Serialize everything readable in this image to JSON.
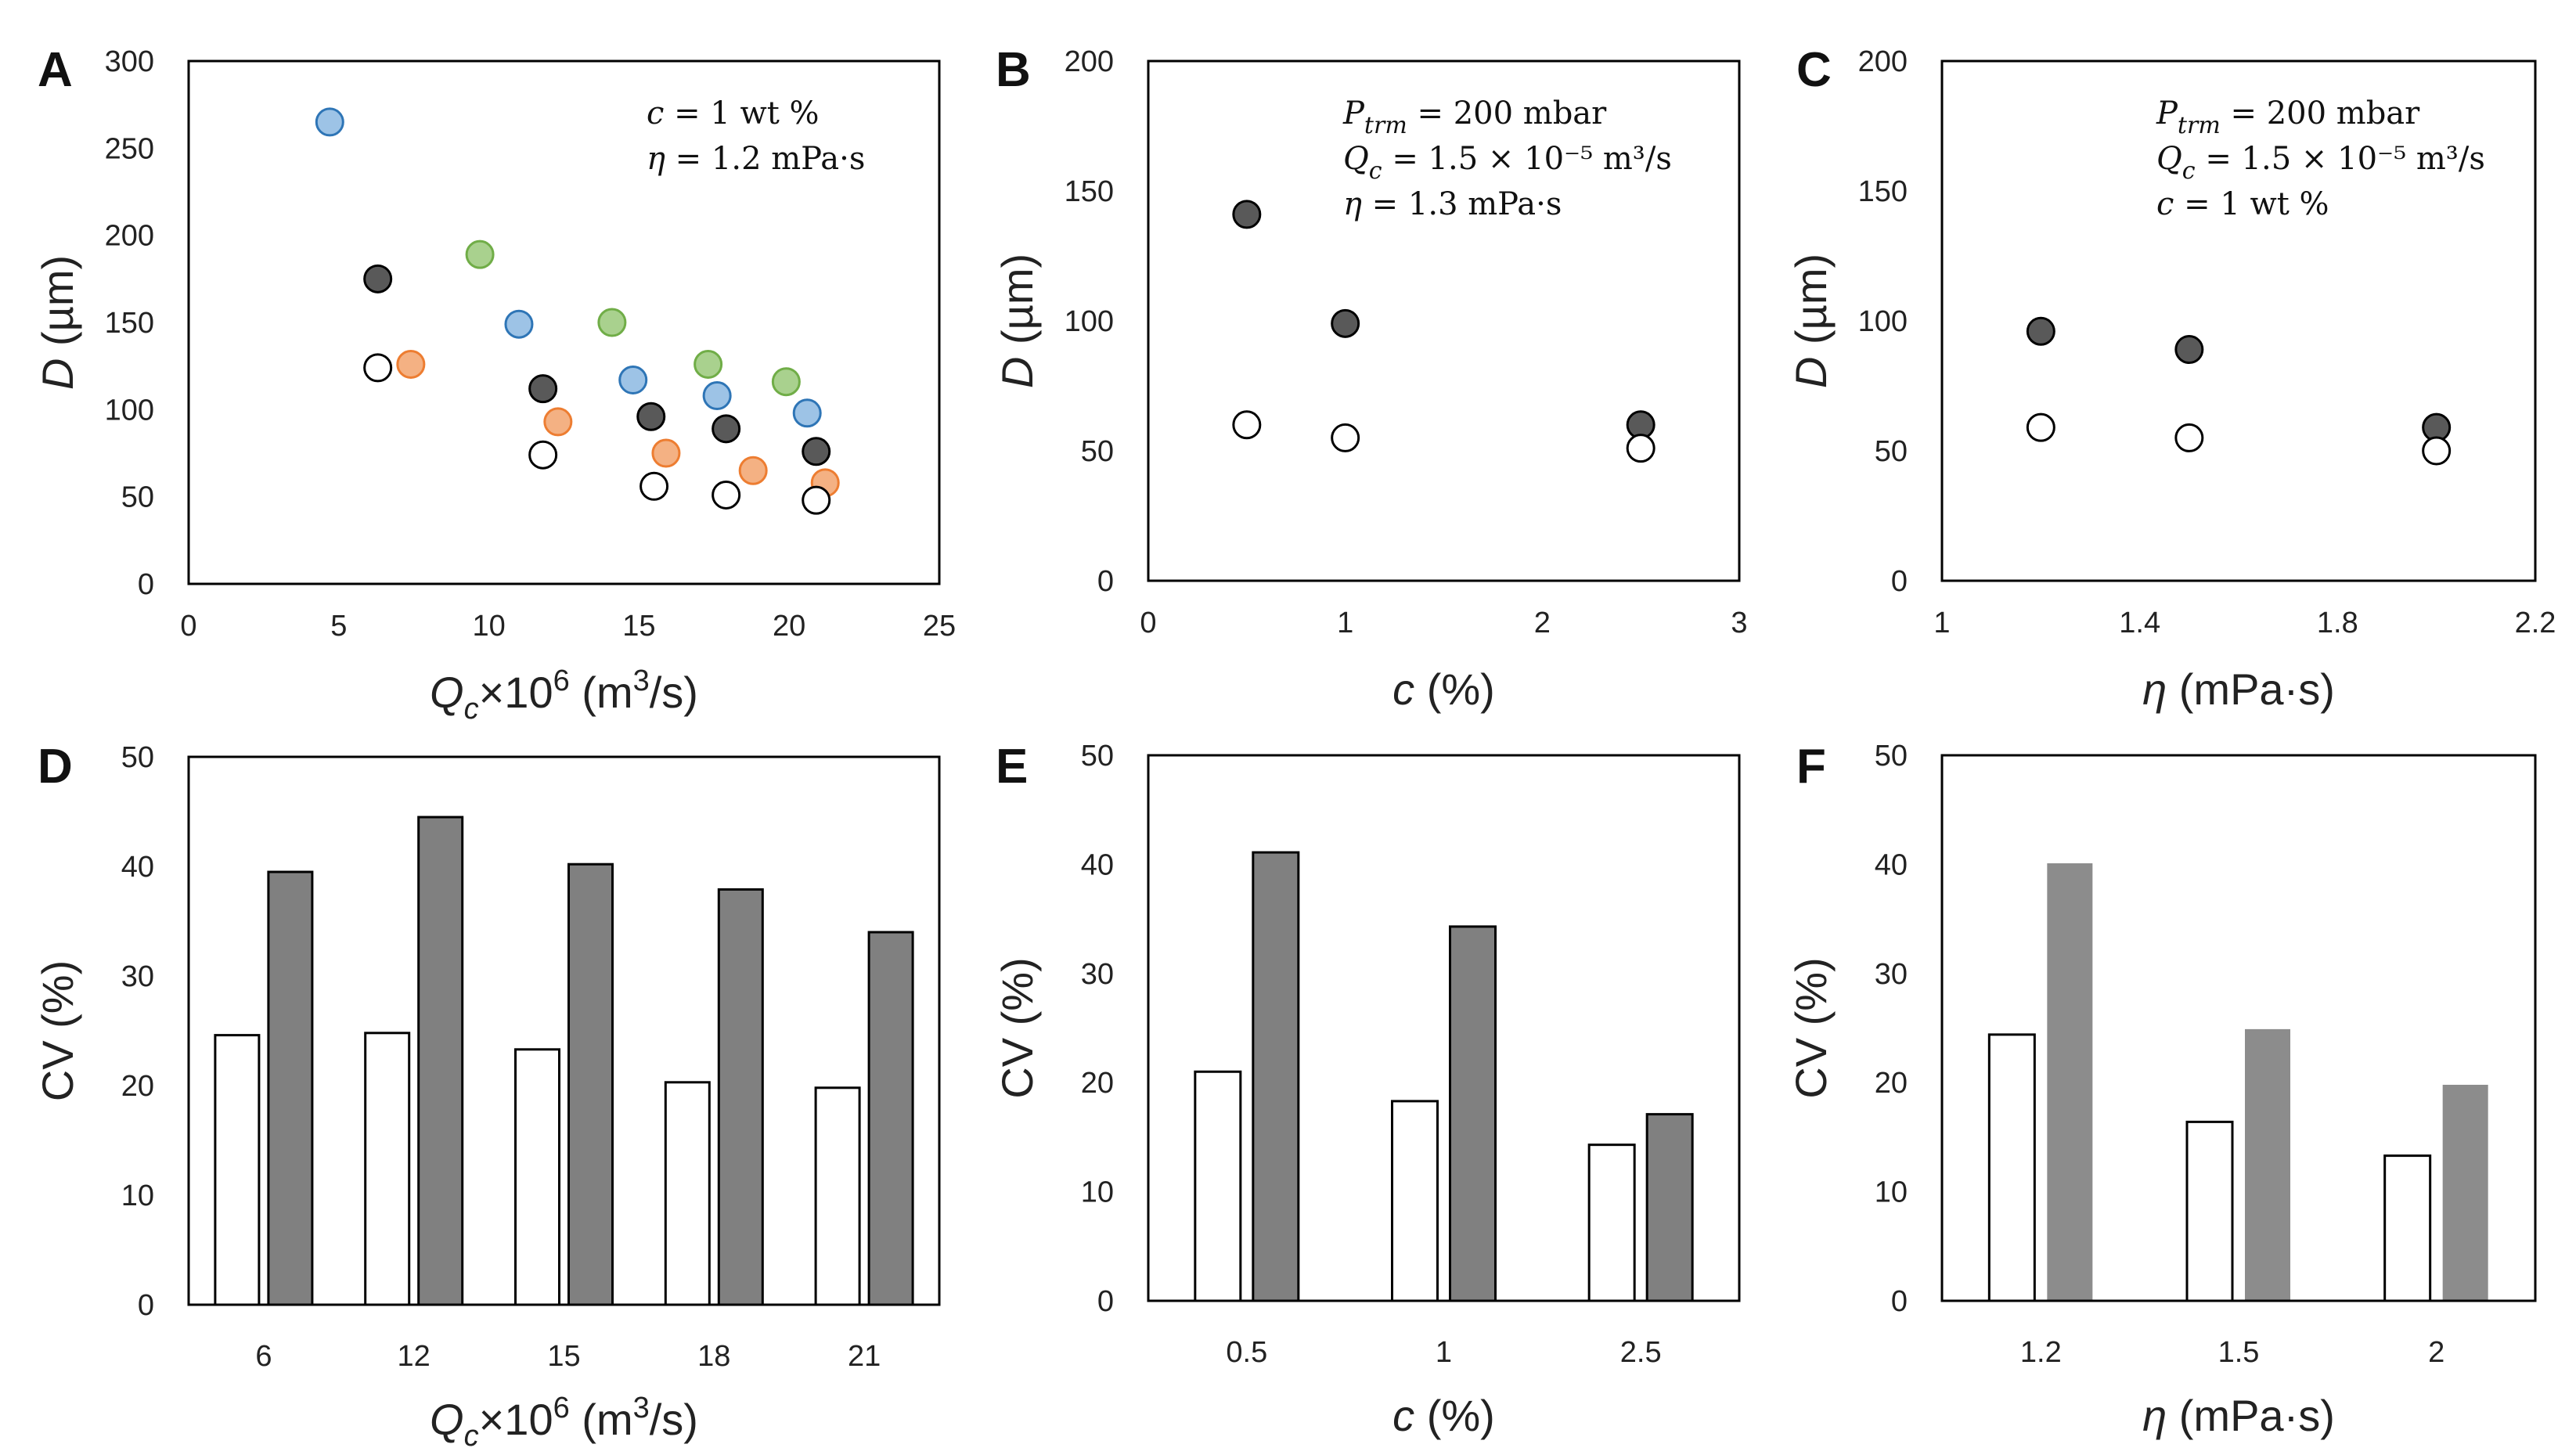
{
  "colors": {
    "dark": "#595959",
    "blue": "#9dc3e6",
    "blue_edge": "#2e75b6",
    "green": "#a9d18e",
    "green_edge": "#70ad47",
    "orange": "#f4b183",
    "orange_edge": "#ed7d31",
    "white": "#ffffff",
    "bar_dark": "#808080",
    "bar_gray_F": "#8c8c8c"
  },
  "chart_data": [
    {
      "id": "A",
      "type": "scatter",
      "letter": "A",
      "xlabel": "Q_c×10^6 (m³/s)",
      "ylabel": "D (µm)",
      "xlabel_parts": [
        "Q",
        "c",
        "×10",
        "6",
        " (m",
        "3",
        "/s)"
      ],
      "ylabel_parts": [
        "D",
        " (µm)"
      ],
      "xlim": [
        0,
        25
      ],
      "ylim": [
        0,
        300
      ],
      "xticks": [
        0,
        5,
        10,
        15,
        20,
        25
      ],
      "yticks": [
        0,
        50,
        100,
        150,
        200,
        250,
        300
      ],
      "annotation": [
        "c = 1 wt %",
        "η = 1.2 mPa·s"
      ],
      "series": [
        {
          "name": "blue",
          "fill": "#9dc3e6",
          "stroke": "#2e75b6",
          "x": [
            4.7,
            11.0,
            14.8,
            17.6,
            20.6
          ],
          "y": [
            265,
            149,
            117,
            108,
            98
          ]
        },
        {
          "name": "green",
          "fill": "#a9d18e",
          "stroke": "#70ad47",
          "x": [
            9.7,
            14.1,
            17.3,
            19.9
          ],
          "y": [
            189,
            150,
            126,
            116
          ]
        },
        {
          "name": "orange",
          "fill": "#f4b183",
          "stroke": "#ed7d31",
          "x": [
            7.4,
            12.3,
            15.9,
            18.8,
            21.2
          ],
          "y": [
            126,
            93,
            75,
            65,
            58
          ]
        },
        {
          "name": "dark",
          "fill": "#595959",
          "stroke": "#000000",
          "x": [
            6.3,
            11.8,
            15.4,
            17.9,
            20.9
          ],
          "y": [
            175,
            112,
            96,
            89,
            76
          ]
        },
        {
          "name": "open",
          "fill": "#ffffff",
          "stroke": "#000000",
          "x": [
            6.3,
            11.8,
            15.5,
            17.9,
            20.9
          ],
          "y": [
            124,
            74,
            56,
            51,
            48
          ]
        }
      ]
    },
    {
      "id": "B",
      "type": "scatter",
      "letter": "B",
      "xlabel": "c (%)",
      "ylabel": "D (µm)",
      "xlabel_parts": [
        "c",
        " (%)"
      ],
      "ylabel_parts": [
        "D",
        " (µm)"
      ],
      "xlim": [
        0,
        3
      ],
      "ylim": [
        0,
        200
      ],
      "xticks": [
        0,
        1,
        2,
        3
      ],
      "yticks": [
        0,
        50,
        100,
        150,
        200
      ],
      "annotation": [
        "P_trm = 200 mbar",
        "Q_c = 1.5 × 10⁻⁵ m³/s",
        "η = 1.3 mPa·s"
      ],
      "series": [
        {
          "name": "dark",
          "fill": "#595959",
          "stroke": "#000000",
          "x": [
            0.5,
            1,
            2.5
          ],
          "y": [
            141,
            99,
            60
          ]
        },
        {
          "name": "open",
          "fill": "#ffffff",
          "stroke": "#000000",
          "x": [
            0.5,
            1,
            2.5
          ],
          "y": [
            60,
            55,
            51
          ]
        }
      ]
    },
    {
      "id": "C",
      "type": "scatter",
      "letter": "C",
      "xlabel": "η (mPa·s)",
      "ylabel": "D (µm)",
      "xlabel_parts": [
        "η",
        " (mPa·s)"
      ],
      "ylabel_parts": [
        "D",
        " (µm)"
      ],
      "xlim": [
        1,
        2.2
      ],
      "ylim": [
        0,
        200
      ],
      "xticks": [
        1,
        1.4,
        1.8,
        2.2
      ],
      "yticks": [
        0,
        50,
        100,
        150,
        200
      ],
      "annotation": [
        "P_trm = 200 mbar",
        "Q_c = 1.5 × 10⁻⁵ m³/s",
        "c = 1 wt %"
      ],
      "series": [
        {
          "name": "dark",
          "fill": "#595959",
          "stroke": "#000000",
          "x": [
            1.2,
            1.5,
            2.0
          ],
          "y": [
            96,
            89,
            59
          ]
        },
        {
          "name": "open",
          "fill": "#ffffff",
          "stroke": "#000000",
          "x": [
            1.2,
            1.5,
            2.0
          ],
          "y": [
            59,
            55,
            50
          ]
        }
      ]
    },
    {
      "id": "D",
      "type": "bar",
      "letter": "D",
      "xlabel": "Q_c×10^6 (m³/s)",
      "ylabel": "CV (%)",
      "xlabel_parts": [
        "Q",
        "c",
        "×10",
        "6",
        " (m",
        "3",
        "/s)"
      ],
      "ylabel_parts": [
        "",
        "CV (%)"
      ],
      "ylim": [
        0,
        50
      ],
      "yticks": [
        0,
        10,
        20,
        30,
        40,
        50
      ],
      "categories": [
        "6",
        "12",
        "15",
        "18",
        "21"
      ],
      "series": [
        {
          "name": "open",
          "fill": "#ffffff",
          "stroke": "#000000",
          "values": [
            24.6,
            24.8,
            23.3,
            20.3,
            19.8
          ]
        },
        {
          "name": "dark",
          "fill": "#808080",
          "stroke": "#000000",
          "values": [
            39.5,
            44.5,
            40.2,
            37.9,
            34.0
          ]
        }
      ]
    },
    {
      "id": "E",
      "type": "bar",
      "letter": "E",
      "xlabel": "c (%)",
      "ylabel": "CV (%)",
      "xlabel_parts": [
        "c",
        " (%)"
      ],
      "ylabel_parts": [
        "",
        "CV (%)"
      ],
      "ylim": [
        0,
        50
      ],
      "yticks": [
        0,
        10,
        20,
        30,
        40,
        50
      ],
      "categories": [
        "0.5",
        "1",
        "2.5"
      ],
      "series": [
        {
          "name": "open",
          "fill": "#ffffff",
          "stroke": "#000000",
          "values": [
            21.0,
            18.3,
            14.3
          ]
        },
        {
          "name": "dark",
          "fill": "#808080",
          "stroke": "#000000",
          "values": [
            41.1,
            34.3,
            17.1
          ]
        }
      ]
    },
    {
      "id": "F",
      "type": "bar",
      "letter": "F",
      "xlabel": "η (mPa·s)",
      "ylabel": "CV (%)",
      "xlabel_parts": [
        "η",
        " (mPa·s)"
      ],
      "ylabel_parts": [
        "",
        "CV (%)"
      ],
      "ylim": [
        0,
        50
      ],
      "yticks": [
        0,
        10,
        20,
        30,
        40,
        50
      ],
      "categories": [
        "1.2",
        "1.5",
        "2"
      ],
      "series": [
        {
          "name": "open",
          "fill": "#ffffff",
          "stroke": "#000000",
          "values": [
            24.4,
            16.4,
            13.3
          ]
        },
        {
          "name": "gray",
          "fill": "#8c8c8c",
          "stroke": "none",
          "values": [
            40.1,
            24.9,
            19.8
          ]
        }
      ]
    }
  ]
}
